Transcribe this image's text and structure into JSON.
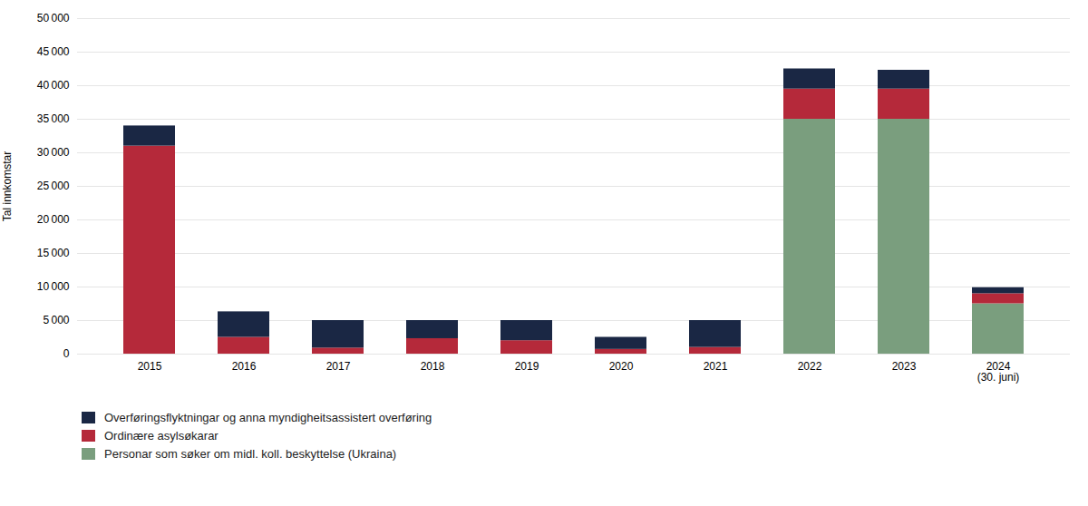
{
  "chart_data": {
    "type": "bar",
    "stacked": true,
    "categories": [
      "2015",
      "2016",
      "2017",
      "2018",
      "2019",
      "2020",
      "2021",
      "2022",
      "2023",
      "2024\n(30. juni)"
    ],
    "series": [
      {
        "name": "Personar som søker om midl. koll. beskyttelse (Ukraina)",
        "color": "#7a9e7e",
        "values": [
          0,
          0,
          0,
          0,
          0,
          0,
          0,
          35000,
          35000,
          7500
        ]
      },
      {
        "name": "Ordinære asylsøkarar",
        "color": "#b5293a",
        "values": [
          31000,
          2500,
          900,
          2300,
          2000,
          700,
          1000,
          4500,
          4500,
          1500
        ]
      },
      {
        "name": "Overføringsflyktningar og anna myndigheitsassistert overføring",
        "color": "#1a2744",
        "values": [
          3000,
          3800,
          4100,
          2700,
          3000,
          1800,
          4000,
          3000,
          2800,
          900
        ]
      }
    ],
    "ylabel": "Tal innkomstar",
    "ylim": [
      0,
      50000
    ],
    "yticks": [
      0,
      {
        "value": 5000,
        "label": "5 000"
      },
      {
        "value": 10000,
        "label": "10 000"
      },
      {
        "value": 15000,
        "label": "15 000"
      },
      {
        "value": 20000,
        "label": "20 000"
      },
      {
        "value": 25000,
        "label": "25 000"
      },
      {
        "value": 30000,
        "label": "30 000"
      },
      {
        "value": 35000,
        "label": "35 000"
      },
      {
        "value": 40000,
        "label": "40 000"
      },
      {
        "value": 45000,
        "label": "45 000"
      },
      {
        "value": 50000,
        "label": "50 000"
      }
    ],
    "grid": true,
    "legend": "bottom"
  }
}
